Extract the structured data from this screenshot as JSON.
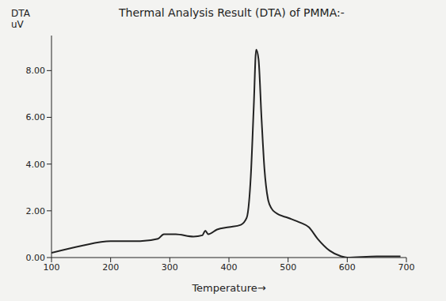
{
  "chart_data": {
    "type": "line",
    "title": "Thermal Analysis Result (DTA) of PMMA:-",
    "x_label": "Temperature→",
    "y_label": "DTA uV",
    "x": [
      100,
      150,
      200,
      250,
      280,
      290,
      310,
      340,
      355,
      360,
      365,
      380,
      400,
      420,
      430,
      437,
      442,
      446,
      450,
      455,
      460,
      466,
      472,
      480,
      500,
      520,
      535,
      550,
      570,
      590,
      600,
      650,
      690
    ],
    "values": [
      0.2,
      0.5,
      0.7,
      0.7,
      0.8,
      1.0,
      1.0,
      0.9,
      0.95,
      1.15,
      1.0,
      1.2,
      1.3,
      1.4,
      1.7,
      3.5,
      6.5,
      8.9,
      8.5,
      6.0,
      3.8,
      2.5,
      2.1,
      1.9,
      1.7,
      1.5,
      1.3,
      0.8,
      0.3,
      0.05,
      0.0,
      0.05,
      0.05
    ],
    "color": "#222222",
    "xlim": [
      100,
      700
    ],
    "xticks": [
      100,
      200,
      300,
      400,
      500,
      600,
      700
    ],
    "ylim": [
      0,
      9.5
    ],
    "yticks": [
      {
        "value": 0,
        "label": "0.00"
      },
      {
        "value": 2,
        "label": "2.00"
      },
      {
        "value": 4,
        "label": "4.00"
      },
      {
        "value": 6,
        "label": "6.00"
      },
      {
        "value": 8,
        "label": "8.00"
      }
    ],
    "grid": false
  }
}
